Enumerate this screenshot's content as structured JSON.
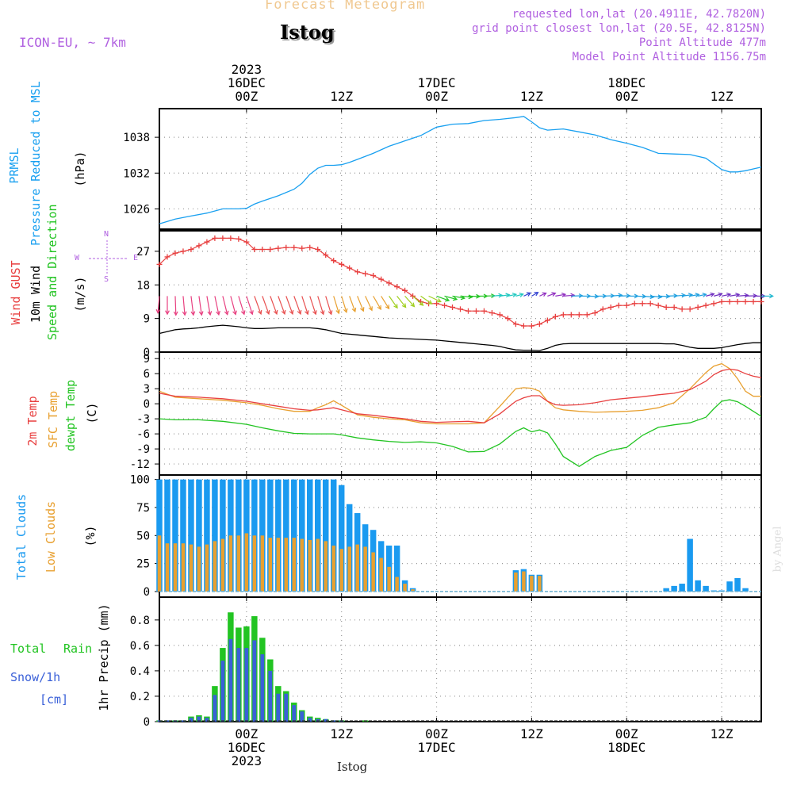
{
  "header": {
    "forecast_title": "Forecast Meteogram",
    "station": "Istog",
    "model": "ICON-EU, ~ 7km",
    "requested": "requested lon,lat (20.4911E, 42.7820N)",
    "grid_point": "grid point closest lon,lat (20.5E, 42.8125N)",
    "point_alt": "Point Altitude 477m",
    "model_alt": "Model Point Altitude 1156.75m"
  },
  "footer": {
    "station": "Istog",
    "credit": "by Angel"
  },
  "time_axis": {
    "top_ticks": [
      {
        "x": 0,
        "label": "00Z",
        "date": "16DEC",
        "year": "2023"
      },
      {
        "x": 12,
        "label": "12Z",
        "date": "",
        "year": ""
      },
      {
        "x": 24,
        "label": "00Z",
        "date": "17DEC",
        "year": ""
      },
      {
        "x": 36,
        "label": "12Z",
        "date": "",
        "year": ""
      },
      {
        "x": 48,
        "label": "00Z",
        "date": "18DEC",
        "year": ""
      },
      {
        "x": 60,
        "label": "12Z",
        "date": "",
        "year": ""
      }
    ],
    "range_hours_from_16DEC_00Z": [
      -11,
      65
    ]
  },
  "panel_labels": {
    "prmsl": [
      "PRMSL",
      "Pressure Reduced to MSL",
      "(hPa)"
    ],
    "wind": [
      "Wind GUST",
      "10m Wind",
      "Speed and Direction",
      "(m/s)"
    ],
    "compass": {
      "n": "N",
      "s": "S",
      "e": "E",
      "w": "W"
    },
    "temp": [
      "2m Temp",
      "SFC Temp",
      "dewpt Temp",
      "(C)"
    ],
    "clouds": [
      "Total Clouds",
      "Low Clouds",
      "(%)"
    ],
    "precip": [
      "Total",
      "Rain",
      "Snow/1h",
      "[cm]",
      "1hr Precip (mm)"
    ]
  },
  "colors": {
    "pressure": "#19a0f0",
    "gust": "#e84040",
    "wind": "#000000",
    "temp2m": "#e84040",
    "sfc": "#e8a030",
    "dewpt": "#22c422",
    "total_clouds": "#1a9af0",
    "low_clouds": "#e8a030",
    "rain": "#22c422",
    "snow": "#3a60d8",
    "meta": "#b060e0",
    "title_faint": "#f0c890"
  },
  "chart_data": [
    {
      "type": "line",
      "name": "prmsl",
      "ylabel": "(hPa)",
      "yticks": [
        1026,
        1032,
        1038
      ],
      "ylim": [
        1022.6,
        1042.8
      ],
      "x": [
        -11,
        -9,
        -7,
        -5,
        -3,
        -1,
        0,
        1,
        2,
        4,
        6,
        7,
        8,
        9,
        10,
        11,
        12,
        13,
        14,
        16,
        18,
        20,
        22,
        24,
        26,
        28,
        30,
        32,
        34,
        35,
        36,
        37,
        38,
        40,
        42,
        44,
        46,
        48,
        50,
        52,
        54,
        56,
        58,
        60,
        61,
        62,
        63,
        64,
        65
      ],
      "series": [
        {
          "name": "PRMSL",
          "values": [
            1023.5,
            1024.3,
            1024.8,
            1025.3,
            1026.0,
            1026.0,
            1026.1,
            1026.8,
            1027.3,
            1028.2,
            1029.3,
            1030.3,
            1031.8,
            1032.8,
            1033.3,
            1033.3,
            1033.4,
            1033.8,
            1034.3,
            1035.3,
            1036.5,
            1037.4,
            1038.3,
            1039.7,
            1040.2,
            1040.3,
            1040.8,
            1041.0,
            1041.3,
            1041.5,
            1040.6,
            1039.6,
            1039.2,
            1039.4,
            1038.9,
            1038.4,
            1037.6,
            1037.0,
            1036.3,
            1035.3,
            1035.2,
            1035.1,
            1034.5,
            1032.6,
            1032.2,
            1032.2,
            1032.4,
            1032.7,
            1033.0
          ]
        }
      ]
    },
    {
      "type": "line",
      "name": "wind",
      "ylabel": "(m/s)",
      "yticks": [
        0,
        9,
        18,
        27
      ],
      "ylim": [
        0,
        32.5
      ],
      "x": [
        -11,
        -10,
        -9,
        -8,
        -7,
        -6,
        -5,
        -4,
        -3,
        -2,
        -1,
        0,
        1,
        2,
        3,
        4,
        5,
        6,
        7,
        8,
        9,
        10,
        11,
        12,
        13,
        14,
        15,
        16,
        17,
        18,
        19,
        20,
        21,
        22,
        23,
        24,
        25,
        26,
        27,
        28,
        29,
        30,
        31,
        32,
        33,
        34,
        35,
        36,
        37,
        38,
        39,
        40,
        41,
        42,
        43,
        44,
        45,
        46,
        47,
        48,
        49,
        50,
        51,
        52,
        53,
        54,
        55,
        56,
        57,
        58,
        59,
        60,
        61,
        62,
        63,
        64,
        65
      ],
      "series": [
        {
          "name": "Wind GUST",
          "values": [
            23.5,
            25.5,
            26.5,
            27,
            27.5,
            28.5,
            29.5,
            30.5,
            30.5,
            30.5,
            30.3,
            29.5,
            27.5,
            27.5,
            27.5,
            27.8,
            28,
            28,
            27.8,
            28,
            27.5,
            26,
            24.5,
            23.5,
            22.5,
            21.5,
            21,
            20.5,
            19.5,
            18.5,
            17.5,
            16.5,
            15,
            13.5,
            13,
            13,
            12.5,
            12,
            11.5,
            11,
            11,
            11,
            10.5,
            10,
            9,
            7.5,
            7,
            7,
            7.5,
            8.5,
            9.5,
            10,
            10,
            10,
            10,
            10.5,
            11.5,
            12,
            12.5,
            12.5,
            13,
            13,
            13,
            12.5,
            12,
            12,
            11.5,
            11.5,
            12,
            12.5,
            13,
            13.5,
            13.5,
            13.5,
            13.5,
            13.5,
            13.5
          ]
        },
        {
          "name": "10m Wind",
          "values": [
            5,
            5.5,
            6,
            6.2,
            6.3,
            6.5,
            6.8,
            7,
            7.2,
            7,
            6.8,
            6.5,
            6.3,
            6.3,
            6.4,
            6.5,
            6.5,
            6.5,
            6.5,
            6.5,
            6.3,
            6,
            5.5,
            5,
            4.8,
            4.6,
            4.4,
            4.2,
            4,
            3.8,
            3.7,
            3.6,
            3.5,
            3.4,
            3.3,
            3.2,
            3,
            2.8,
            2.6,
            2.4,
            2.2,
            2,
            1.8,
            1.5,
            1,
            0.6,
            0.5,
            0.5,
            0.4,
            1,
            1.8,
            2.2,
            2.3,
            2.3,
            2.3,
            2.3,
            2.3,
            2.3,
            2.3,
            2.3,
            2.3,
            2.3,
            2.3,
            2.3,
            2.2,
            2.2,
            1.8,
            1.3,
            1,
            1,
            1,
            1.2,
            1.6,
            2,
            2.3,
            2.5,
            2.5
          ]
        }
      ]
    },
    {
      "type": "line",
      "name": "temperature",
      "ylabel": "(C)",
      "yticks": [
        -12,
        -9,
        -6,
        -3,
        0,
        3,
        6,
        9
      ],
      "ylim": [
        -14.2,
        10.3
      ],
      "x": [
        -11,
        -9,
        -6,
        -3,
        0,
        2,
        4,
        6,
        8,
        9,
        10,
        11,
        12,
        14,
        16,
        18,
        20,
        22,
        24,
        26,
        28,
        30,
        32,
        34,
        35,
        36,
        37,
        38,
        39,
        40,
        42,
        44,
        46,
        48,
        50,
        52,
        54,
        56,
        58,
        59,
        60,
        61,
        62,
        63,
        64,
        65
      ],
      "series": [
        {
          "name": "2m Temp",
          "values": [
            2.1,
            1.5,
            1.3,
            1.0,
            0.5,
            0,
            -0.5,
            -1,
            -1.3,
            -1.2,
            -1,
            -0.8,
            -1.2,
            -2,
            -2.3,
            -2.7,
            -3,
            -3.5,
            -3.7,
            -3.6,
            -3.5,
            -3.8,
            -2,
            0.5,
            1.2,
            1.6,
            1.6,
            0.5,
            -0.2,
            -0.3,
            -0.2,
            0.2,
            0.8,
            1.1,
            1.4,
            1.8,
            2.1,
            2.8,
            4.5,
            5.8,
            6.6,
            6.9,
            6.7,
            6.0,
            5.5,
            5.2
          ]
        },
        {
          "name": "SFC Temp",
          "values": [
            2.5,
            1.3,
            1.0,
            0.7,
            0.2,
            -0.3,
            -1,
            -1.5,
            -1.5,
            -0.8,
            -0.2,
            0.6,
            -0.3,
            -2.2,
            -2.7,
            -3,
            -3.2,
            -3.8,
            -4.0,
            -4.0,
            -4.0,
            -3.8,
            -0.5,
            3.0,
            3.2,
            3.1,
            2.5,
            0.5,
            -0.8,
            -1.2,
            -1.5,
            -1.7,
            -1.6,
            -1.5,
            -1.3,
            -0.8,
            0.2,
            3.0,
            6.2,
            7.5,
            8.0,
            7.0,
            5.0,
            2.5,
            1.5,
            1.5
          ]
        },
        {
          "name": "dewpt Temp",
          "values": [
            -3.0,
            -3.2,
            -3.2,
            -3.5,
            -4.1,
            -4.8,
            -5.4,
            -5.9,
            -6.0,
            -6.0,
            -6.0,
            -6.0,
            -6.2,
            -6.8,
            -7.2,
            -7.5,
            -7.7,
            -7.6,
            -7.8,
            -8.5,
            -9.6,
            -9.5,
            -8.0,
            -5.5,
            -4.8,
            -5.6,
            -5.2,
            -5.8,
            -8,
            -10.5,
            -12.5,
            -10.5,
            -9.3,
            -8.7,
            -6.3,
            -4.7,
            -4.2,
            -3.8,
            -2.7,
            -1,
            0.5,
            0.8,
            0.4,
            -0.5,
            -1.5,
            -2.5
          ]
        }
      ]
    },
    {
      "type": "bar",
      "name": "clouds",
      "ylabel": "(%)",
      "yticks": [
        0,
        25,
        50,
        75,
        100
      ],
      "ylim": [
        -5,
        104
      ],
      "x": [
        -11,
        -10,
        -9,
        -8,
        -7,
        -6,
        -5,
        -4,
        -3,
        -2,
        -1,
        0,
        1,
        2,
        3,
        4,
        5,
        6,
        7,
        8,
        9,
        10,
        11,
        12,
        13,
        14,
        15,
        16,
        17,
        18,
        19,
        20,
        21,
        22,
        23,
        24,
        25,
        26,
        27,
        28,
        29,
        30,
        31,
        32,
        33,
        34,
        35,
        36,
        37,
        38,
        39,
        40,
        41,
        42,
        43,
        44,
        45,
        46,
        47,
        48,
        49,
        50,
        51,
        52,
        53,
        54,
        55,
        56,
        57,
        58,
        59,
        60,
        61,
        62,
        63,
        64,
        65
      ],
      "series": [
        {
          "name": "Total Clouds",
          "values": [
            100,
            100,
            100,
            100,
            100,
            100,
            100,
            100,
            100,
            100,
            100,
            100,
            100,
            100,
            100,
            100,
            100,
            100,
            100,
            100,
            100,
            100,
            100,
            95,
            78,
            70,
            60,
            55,
            45,
            41,
            41,
            10,
            3,
            0,
            0,
            0,
            0,
            0,
            0,
            0,
            0,
            0,
            0,
            0,
            0,
            19,
            20,
            15,
            15,
            0,
            0,
            0,
            0,
            0,
            0,
            0,
            0,
            0,
            0,
            0,
            0,
            0,
            0,
            0,
            3,
            5,
            7,
            47,
            10,
            5,
            1,
            1,
            9,
            12,
            3,
            0,
            0
          ]
        },
        {
          "name": "Low Clouds",
          "values": [
            50,
            43,
            43,
            43,
            42,
            40,
            42,
            45,
            47,
            50,
            50,
            52,
            50,
            50,
            48,
            48,
            48,
            48,
            47,
            46,
            47,
            45,
            41,
            38,
            40,
            42,
            40,
            35,
            30,
            22,
            13,
            7,
            2,
            0,
            0,
            0,
            0,
            0,
            0,
            0,
            0,
            0,
            0,
            0,
            0,
            17,
            18,
            14,
            14,
            0,
            0,
            0,
            0,
            0,
            0,
            0,
            0,
            0,
            0,
            0,
            0,
            0,
            0,
            0,
            0,
            0,
            0,
            0,
            0,
            0,
            0,
            0,
            0,
            0,
            0,
            0,
            0
          ]
        }
      ]
    },
    {
      "type": "bar",
      "name": "precip",
      "ylabel": "1hr Precip (mm)",
      "yticks": [
        0,
        0.2,
        0.4,
        0.6,
        0.8
      ],
      "ylim": [
        0,
        0.98
      ],
      "x": [
        -11,
        -10,
        -9,
        -8,
        -7,
        -6,
        -5,
        -4,
        -3,
        -2,
        -1,
        0,
        1,
        2,
        3,
        4,
        5,
        6,
        7,
        8,
        9,
        10,
        11,
        12,
        13,
        14,
        15,
        16,
        17,
        18
      ],
      "series": [
        {
          "name": "Total Rain",
          "values": [
            0.01,
            0.01,
            0.01,
            0.01,
            0.04,
            0.05,
            0.04,
            0.28,
            0.58,
            0.86,
            0.74,
            0.75,
            0.83,
            0.66,
            0.49,
            0.28,
            0.24,
            0.15,
            0.09,
            0.04,
            0.03,
            0.02,
            0.01,
            0.01,
            0,
            0,
            0.01,
            0,
            0,
            0
          ]
        },
        {
          "name": "Snow/1h",
          "values": [
            0.01,
            0.01,
            0.01,
            0.01,
            0.03,
            0.04,
            0.03,
            0.21,
            0.48,
            0.65,
            0.58,
            0.58,
            0.64,
            0.53,
            0.4,
            0.22,
            0.22,
            0.13,
            0.08,
            0.03,
            0.02,
            0.02,
            0.01,
            0.01,
            0,
            0,
            0,
            0,
            0,
            0
          ]
        }
      ]
    }
  ],
  "wind_direction": {
    "x": [
      -11,
      -10,
      -9,
      -8,
      -7,
      -6,
      -5,
      -4,
      -3,
      -2,
      -1,
      0,
      1,
      2,
      3,
      4,
      5,
      6,
      7,
      8,
      9,
      10,
      11,
      12,
      13,
      14,
      15,
      16,
      17,
      18,
      19,
      20,
      21,
      22,
      23,
      24,
      25,
      26,
      27,
      28,
      29,
      30,
      31,
      32,
      33,
      34,
      35,
      36,
      37,
      38,
      39,
      40,
      41,
      42,
      43,
      44,
      45,
      46,
      47,
      48,
      49,
      50,
      51,
      52,
      53,
      54,
      55,
      56,
      57,
      58,
      59,
      60,
      61,
      62,
      63,
      64,
      65
    ],
    "blowing_toward_deg": [
      185,
      180,
      178,
      175,
      173,
      172,
      170,
      168,
      166,
      165,
      163,
      162,
      160,
      160,
      160,
      160,
      160,
      160,
      162,
      162,
      163,
      163,
      163,
      163,
      160,
      158,
      155,
      150,
      148,
      145,
      142,
      138,
      132,
      125,
      115,
      110,
      105,
      100,
      95,
      92,
      90,
      88,
      85,
      82,
      78,
      75,
      65,
      60,
      65,
      70,
      80,
      85,
      88,
      90,
      92,
      90,
      88,
      85,
      88,
      90,
      92,
      95,
      95,
      92,
      88,
      85,
      82,
      80,
      78,
      75,
      75,
      78,
      80,
      85,
      88,
      90,
      90
    ]
  }
}
